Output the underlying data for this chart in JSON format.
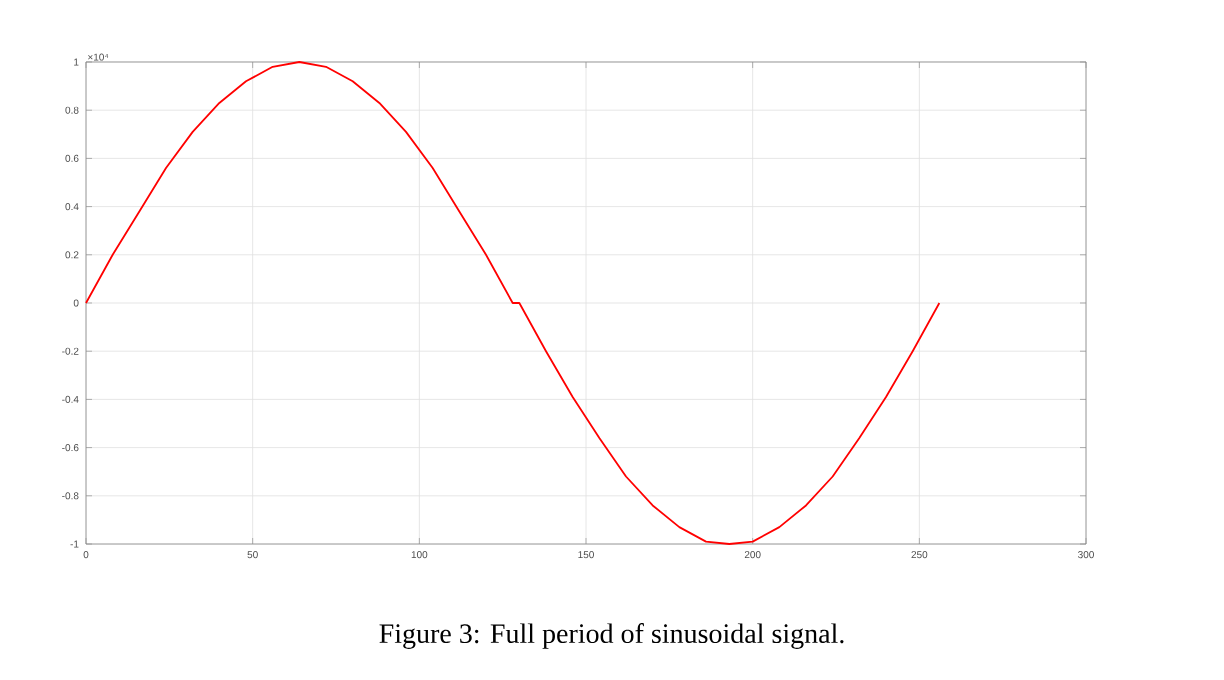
{
  "chart_data": {
    "type": "line",
    "annotations": [
      "×10⁴",
      "Figure 3: Full period of sinusoidal signal."
    ],
    "xlim": [
      0,
      300
    ],
    "xticks": [
      0,
      50,
      100,
      150,
      200,
      250,
      300
    ],
    "ylim": [
      -1,
      1
    ],
    "yticks": [
      -1,
      -0.8,
      -0.6,
      -0.4,
      -0.2,
      0,
      0.2,
      0.4,
      0.6,
      0.8,
      1
    ],
    "grid": true,
    "marker": "none",
    "line_style": "solid",
    "series": [
      {
        "color": "#ff0000",
        "x": [
          0,
          8,
          16,
          24,
          32,
          40,
          48,
          56,
          64,
          72,
          80,
          88,
          96,
          104,
          112,
          120,
          128,
          130,
          138,
          146,
          154,
          162,
          170,
          178,
          186,
          193,
          200,
          208,
          216,
          224,
          232,
          240,
          248,
          256
        ],
        "values": [
          0,
          0.2,
          0.38,
          0.56,
          0.71,
          0.83,
          0.92,
          0.98,
          1,
          0.98,
          0.92,
          0.83,
          0.71,
          0.56,
          0.38,
          0.2,
          0,
          0,
          -0.2,
          -0.39,
          -0.56,
          -0.72,
          -0.84,
          -0.93,
          -0.99,
          -1,
          -0.99,
          -0.93,
          -0.84,
          -0.72,
          -0.56,
          -0.39,
          -0.2,
          0
        ]
      }
    ]
  }
}
